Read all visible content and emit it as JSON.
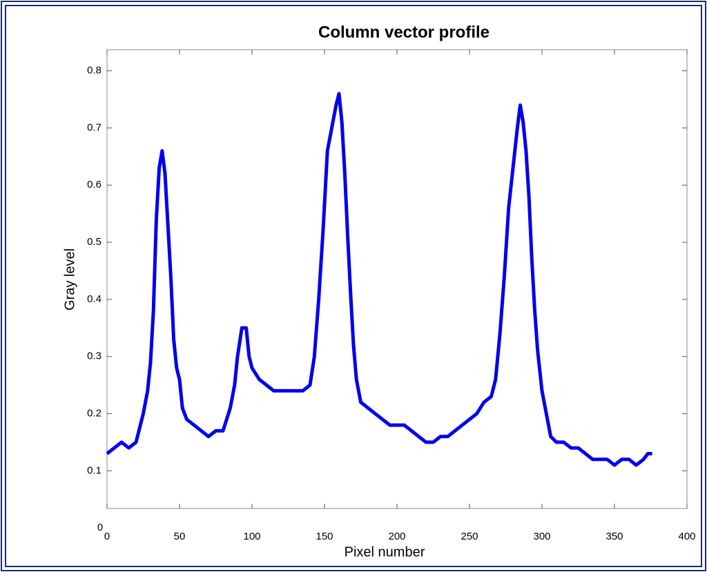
{
  "chart_data": {
    "type": "line",
    "title": "Column vector profile",
    "x_label": "Pixel number",
    "y_label": "Gray level",
    "corner_label": "0",
    "x": [
      0,
      5,
      10,
      15,
      20,
      25,
      28,
      30,
      32,
      34,
      36,
      38,
      40,
      42,
      44,
      46,
      48,
      50,
      52,
      55,
      60,
      65,
      70,
      75,
      80,
      85,
      88,
      90,
      93,
      96,
      98,
      100,
      105,
      110,
      115,
      120,
      125,
      130,
      135,
      140,
      143,
      146,
      149,
      152,
      155,
      158,
      160,
      162,
      164,
      166,
      168,
      170,
      172,
      175,
      180,
      185,
      190,
      195,
      200,
      205,
      210,
      215,
      220,
      225,
      230,
      235,
      240,
      245,
      250,
      255,
      260,
      265,
      268,
      271,
      274,
      277,
      280,
      283,
      285,
      287,
      289,
      291,
      293,
      295,
      297,
      300,
      303,
      306,
      310,
      315,
      320,
      325,
      330,
      335,
      340,
      345,
      350,
      355,
      360,
      365,
      370,
      373,
      376
    ],
    "series": [
      {
        "name": "profile",
        "color": "#0000ee",
        "values": [
          0.13,
          0.14,
          0.15,
          0.14,
          0.15,
          0.2,
          0.24,
          0.29,
          0.38,
          0.54,
          0.63,
          0.66,
          0.62,
          0.53,
          0.44,
          0.33,
          0.28,
          0.26,
          0.21,
          0.19,
          0.18,
          0.17,
          0.16,
          0.17,
          0.17,
          0.21,
          0.25,
          0.3,
          0.35,
          0.35,
          0.3,
          0.28,
          0.26,
          0.25,
          0.24,
          0.24,
          0.24,
          0.24,
          0.24,
          0.25,
          0.3,
          0.4,
          0.52,
          0.66,
          0.7,
          0.74,
          0.76,
          0.71,
          0.62,
          0.51,
          0.41,
          0.32,
          0.26,
          0.22,
          0.21,
          0.2,
          0.19,
          0.18,
          0.18,
          0.18,
          0.17,
          0.16,
          0.15,
          0.15,
          0.16,
          0.16,
          0.17,
          0.18,
          0.19,
          0.2,
          0.22,
          0.23,
          0.26,
          0.34,
          0.44,
          0.56,
          0.63,
          0.7,
          0.74,
          0.71,
          0.66,
          0.58,
          0.47,
          0.38,
          0.31,
          0.24,
          0.2,
          0.16,
          0.15,
          0.15,
          0.14,
          0.14,
          0.13,
          0.12,
          0.12,
          0.12,
          0.11,
          0.12,
          0.12,
          0.11,
          0.12,
          0.13,
          0.13
        ]
      }
    ],
    "xlim": [
      0,
      400
    ],
    "xticks": [
      0,
      50,
      100,
      150,
      200,
      250,
      300,
      350,
      400
    ],
    "ylim": [
      0.034,
      0.837
    ],
    "yticks": [
      0.1,
      0.2,
      0.3,
      0.4,
      0.5,
      0.6,
      0.7,
      0.8
    ]
  }
}
